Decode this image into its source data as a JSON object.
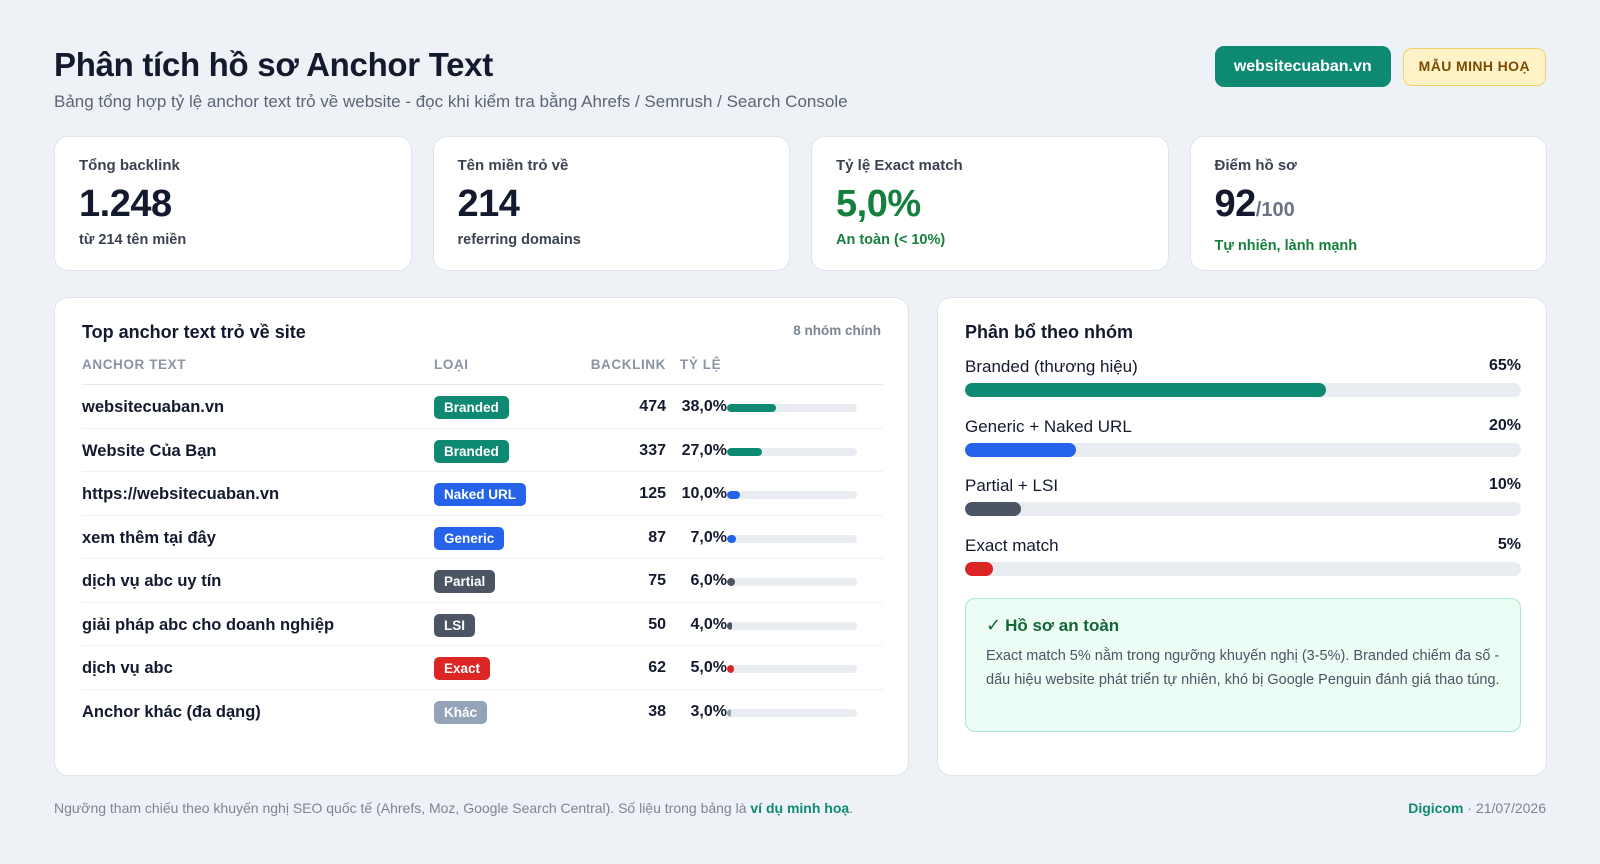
{
  "header": {
    "title": "Phân tích hồ sơ Anchor Text",
    "subtitle": "Bảng tổng hợp tỷ lệ anchor text trỏ về website - đọc khi kiểm tra bằng Ahrefs / Semrush / Search Console",
    "site_chip": "websitecuaban.vn",
    "sample_chip": "MẪU MINH HOẠ"
  },
  "kpis": [
    {
      "label": "Tổng backlink",
      "value": "1.248",
      "unit": "",
      "note": "từ 214 tên miền"
    },
    {
      "label": "Tên miền trỏ về",
      "value": "214",
      "unit": "",
      "note": "referring domains"
    },
    {
      "label": "Tỷ lệ Exact match",
      "value": "5,0%",
      "unit": "",
      "note": "An toàn (< 10%)"
    },
    {
      "label": "Điểm hồ sơ",
      "value": "92",
      "unit": "/100",
      "note": "Tự nhiên, lành mạnh"
    }
  ],
  "anchor_table": {
    "title": "Top anchor text trỏ về site",
    "meta": "8 nhóm chính",
    "columns": {
      "anchor": "ANCHOR TEXT",
      "type": "LOẠI",
      "backlink": "BACKLINK",
      "ratio": "TỶ LỆ"
    },
    "rows": [
      {
        "anchor": "websitecuaban.vn",
        "type": "Branded",
        "backlink": "474",
        "ratio": "38,0%",
        "percent": 38,
        "color": "#0f8a72"
      },
      {
        "anchor": "Website Của Bạn",
        "type": "Branded",
        "backlink": "337",
        "ratio": "27,0%",
        "percent": 27,
        "color": "#0f8a72"
      },
      {
        "anchor": "https://websitecuaban.vn",
        "type": "Naked URL",
        "backlink": "125",
        "ratio": "10,0%",
        "percent": 10,
        "color": "#2563eb"
      },
      {
        "anchor": "xem thêm tại đây",
        "type": "Generic",
        "backlink": "87",
        "ratio": "7,0%",
        "percent": 7,
        "color": "#2563eb"
      },
      {
        "anchor": "dịch vụ abc uy tín",
        "type": "Partial",
        "backlink": "75",
        "ratio": "6,0%",
        "percent": 6,
        "color": "#4b5563"
      },
      {
        "anchor": "giải pháp abc cho doanh nghiệp",
        "type": "LSI",
        "backlink": "50",
        "ratio": "4,0%",
        "percent": 4,
        "color": "#4b5563"
      },
      {
        "anchor": "dịch vụ abc",
        "type": "Exact",
        "backlink": "62",
        "ratio": "5,0%",
        "percent": 5,
        "color": "#dc2626"
      },
      {
        "anchor": "Anchor khác (đa dạng)",
        "type": "Khác",
        "backlink": "38",
        "ratio": "3,0%",
        "percent": 3,
        "color": "#94a3b8"
      }
    ]
  },
  "distribution": {
    "title": "Phân bổ theo nhóm",
    "items": [
      {
        "label": "Branded (thương hiệu)",
        "value": "65%",
        "percent": 65,
        "color": "#0f8a72"
      },
      {
        "label": "Generic + Naked URL",
        "value": "20%",
        "percent": 20,
        "color": "#2563eb"
      },
      {
        "label": "Partial + LSI",
        "value": "10%",
        "percent": 10,
        "color": "#4b5563"
      },
      {
        "label": "Exact match",
        "value": "5%",
        "percent": 5,
        "color": "#dc2626"
      }
    ],
    "safe": {
      "title": "Hồ sơ an toàn",
      "check": "✓",
      "text": "Exact match 5% nằm trong ngưỡng khuyến nghị (3-5%). Branded chiếm đa số - dấu hiệu website phát triển tự nhiên, khó bị Google Penguin đánh giá thao túng."
    }
  },
  "footer": {
    "text": "Ngưỡng tham chiếu theo khuyến nghị SEO quốc tế (Ahrefs, Moz, Google Search Central). Số liệu trong bảng là",
    "highlight": "ví dụ minh hoạ",
    "end": ".",
    "brand": "Digicom",
    "sep": " · ",
    "date": "21/07/2026"
  },
  "colors": {
    "accent": "#0f8a72",
    "green_text": "#15803d",
    "badge_branded": "#0f8a72",
    "badge_naked": "#2563eb",
    "badge_generic": "#2563eb",
    "badge_partial": "#4b5563",
    "badge_lsi": "#4b5563",
    "badge_exact": "#dc2626",
    "badge_other": "#94a3b8"
  }
}
